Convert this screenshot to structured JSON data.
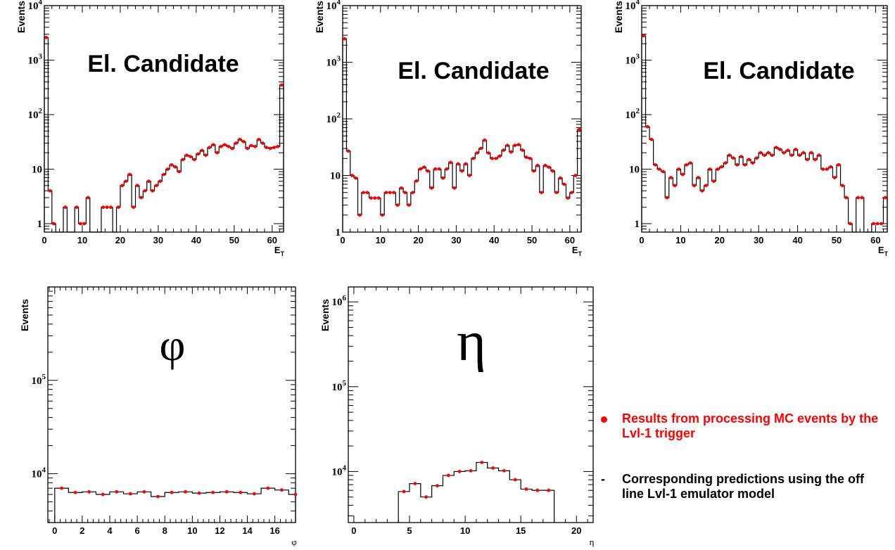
{
  "colors": {
    "mc_points": "#ff0000",
    "emulator_line": "#000000",
    "axes": "#000000"
  },
  "legend": {
    "mc_label": "Results from processing MC events by the Lvl-1 trigger",
    "emulator_label": "Corresponding predictions using the  off line Lvl-1 emulator model",
    "emulator_marker": "-"
  },
  "chart_data": [
    {
      "type": "line",
      "title": "El. Candidate",
      "xlabel": "E_T",
      "ylabel": "Events",
      "ylog": true,
      "xlim": [
        0,
        63
      ],
      "ylim": [
        0.7,
        10000
      ],
      "xticks": [
        0,
        10,
        20,
        30,
        40,
        50,
        60
      ],
      "yticks": [
        1,
        10,
        100,
        1000,
        10000
      ],
      "ytick_labels": [
        "1",
        "10",
        "10^2",
        "10^3",
        "10^4"
      ],
      "x": [
        0,
        1,
        2,
        3,
        4,
        5,
        6,
        7,
        8,
        9,
        10,
        11,
        12,
        13,
        14,
        15,
        16,
        17,
        18,
        19,
        20,
        21,
        22,
        23,
        24,
        25,
        26,
        27,
        28,
        29,
        30,
        31,
        32,
        33,
        34,
        35,
        36,
        37,
        38,
        39,
        40,
        41,
        42,
        43,
        44,
        45,
        46,
        47,
        48,
        49,
        50,
        51,
        52,
        53,
        54,
        55,
        56,
        57,
        58,
        59,
        60,
        61,
        62
      ],
      "series": [
        {
          "name": "MC",
          "values": [
            2600,
            4,
            1,
            0,
            0,
            2,
            0,
            0,
            2,
            1,
            1,
            3,
            0,
            0,
            0,
            2,
            2,
            2,
            0,
            2,
            5,
            6,
            8,
            2,
            5,
            3,
            4,
            6,
            4,
            5,
            6,
            8,
            10,
            12,
            11,
            9,
            15,
            18,
            17,
            15,
            19,
            22,
            18,
            25,
            28,
            20,
            26,
            28,
            26,
            24,
            30,
            35,
            32,
            24,
            27,
            26,
            35,
            30,
            25,
            24,
            25,
            26,
            350
          ]
        }
      ],
      "grid": false
    },
    {
      "type": "line",
      "title": "El. Candidate",
      "xlabel": "E_T",
      "ylabel": "Events",
      "ylog": true,
      "xlim": [
        0,
        63
      ],
      "ylim": [
        1,
        10000
      ],
      "xticks": [
        0,
        10,
        20,
        30,
        40,
        50,
        60
      ],
      "yticks": [
        1,
        10,
        100,
        1000,
        10000
      ],
      "ytick_labels": [
        "1",
        "10",
        "10^2",
        "10^3",
        "10^4"
      ],
      "x": [
        0,
        1,
        2,
        3,
        4,
        5,
        6,
        7,
        8,
        9,
        10,
        11,
        12,
        13,
        14,
        15,
        16,
        17,
        18,
        19,
        20,
        21,
        22,
        23,
        24,
        25,
        26,
        27,
        28,
        29,
        30,
        31,
        32,
        33,
        34,
        35,
        36,
        37,
        38,
        39,
        40,
        41,
        42,
        43,
        44,
        45,
        46,
        47,
        48,
        49,
        50,
        51,
        52,
        53,
        54,
        55,
        56,
        57,
        58,
        59,
        60,
        61,
        62
      ],
      "series": [
        {
          "name": "MC",
          "values": [
            2600,
            27,
            10,
            9,
            2,
            5,
            5,
            4,
            4,
            4,
            2,
            5,
            5,
            5,
            3,
            6,
            5,
            3,
            5,
            8,
            13,
            14,
            12,
            6,
            13,
            13,
            9,
            13,
            17,
            6,
            16,
            12,
            16,
            10,
            20,
            25,
            30,
            42,
            25,
            20,
            20,
            22,
            28,
            34,
            26,
            34,
            35,
            28,
            21,
            20,
            12,
            15,
            5,
            15,
            14,
            12,
            5,
            9,
            7,
            4,
            5,
            10,
            65
          ]
        }
      ],
      "grid": false
    },
    {
      "type": "line",
      "title": "El. Candidate",
      "xlabel": "E_T",
      "ylabel": "Events",
      "ylog": true,
      "xlim": [
        0,
        63
      ],
      "ylim": [
        0.7,
        10000
      ],
      "xticks": [
        0,
        10,
        20,
        30,
        40,
        50,
        60
      ],
      "yticks": [
        1,
        10,
        100,
        1000,
        10000
      ],
      "ytick_labels": [
        "1",
        "10",
        "10^2",
        "10^3",
        "10^4"
      ],
      "x": [
        0,
        1,
        2,
        3,
        4,
        5,
        6,
        7,
        8,
        9,
        10,
        11,
        12,
        13,
        14,
        15,
        16,
        17,
        18,
        19,
        20,
        21,
        22,
        23,
        24,
        25,
        26,
        27,
        28,
        29,
        30,
        31,
        32,
        33,
        34,
        35,
        36,
        37,
        38,
        39,
        40,
        41,
        42,
        43,
        44,
        45,
        46,
        47,
        48,
        49,
        50,
        51,
        52,
        53,
        54,
        55,
        56,
        57,
        58,
        59,
        60,
        61,
        62
      ],
      "series": [
        {
          "name": "MC",
          "values": [
            2800,
            60,
            35,
            12,
            10,
            9,
            3,
            7,
            5,
            10,
            8,
            12,
            13,
            5,
            7,
            4,
            5,
            10,
            6,
            10,
            11,
            13,
            18,
            16,
            12,
            17,
            12,
            15,
            13,
            16,
            20,
            18,
            20,
            18,
            25,
            23,
            20,
            22,
            18,
            23,
            18,
            20,
            15,
            20,
            15,
            18,
            10,
            10,
            11,
            7,
            12,
            5,
            3,
            1,
            0,
            3,
            3,
            0,
            0,
            1,
            1,
            1,
            3
          ]
        }
      ],
      "grid": false
    },
    {
      "type": "line",
      "title": "φ",
      "xlabel": "φ",
      "ylabel": "Events",
      "ylog": true,
      "xlim": [
        -0.5,
        17.5
      ],
      "ylim": [
        3000,
        1000000
      ],
      "xticks": [
        0,
        2,
        4,
        6,
        8,
        10,
        12,
        14,
        16
      ],
      "yticks": [
        10000,
        100000
      ],
      "ytick_labels": [
        "10^4",
        "10^5"
      ],
      "x": [
        0,
        1,
        2,
        3,
        4,
        5,
        6,
        7,
        8,
        9,
        10,
        11,
        12,
        13,
        14,
        15,
        16,
        17
      ],
      "series": [
        {
          "name": "MC",
          "values": [
            7000,
            6300,
            6400,
            6000,
            6400,
            6100,
            6400,
            5700,
            6300,
            6400,
            6200,
            6300,
            6400,
            6300,
            6100,
            7000,
            6700,
            6000
          ]
        }
      ],
      "grid": false
    },
    {
      "type": "line",
      "title": "η",
      "xlabel": "η",
      "ylabel": "Events",
      "ylog": true,
      "xlim": [
        -0.5,
        21.5
      ],
      "ylim": [
        2500,
        1500000
      ],
      "xticks": [
        0,
        5,
        10,
        15,
        20
      ],
      "yticks": [
        10000,
        100000,
        1000000
      ],
      "ytick_labels": [
        "10^4",
        "10^5",
        "10^6"
      ],
      "x": [
        4,
        5,
        6,
        7,
        8,
        9,
        10,
        11,
        12,
        13,
        14,
        15,
        16,
        17
      ],
      "series": [
        {
          "name": "MC",
          "values": [
            5800,
            7200,
            5000,
            6800,
            9000,
            10000,
            10200,
            12800,
            11000,
            10200,
            8000,
            6200,
            6000,
            6000
          ]
        }
      ],
      "grid": false
    }
  ]
}
